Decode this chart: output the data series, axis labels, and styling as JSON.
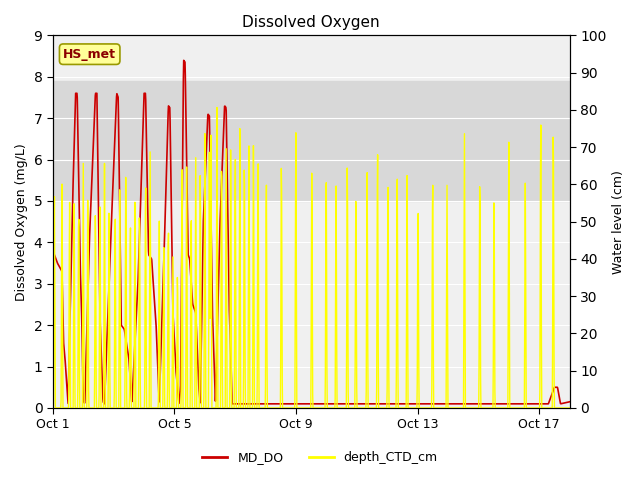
{
  "title": "Dissolved Oxygen",
  "ylabel_left": "Dissolved Oxygen (mg/L)",
  "ylabel_right": "Water level (cm)",
  "ylim_left": [
    0.0,
    9.0
  ],
  "ylim_right": [
    0,
    100
  ],
  "yticks_left": [
    0.0,
    1.0,
    2.0,
    3.0,
    4.0,
    5.0,
    6.0,
    7.0,
    8.0,
    9.0
  ],
  "yticks_right": [
    0,
    10,
    20,
    30,
    40,
    50,
    60,
    70,
    80,
    90,
    100
  ],
  "xtick_labels": [
    "Oct 1",
    "Oct 5",
    "Oct 9",
    "Oct 13",
    "Oct 17"
  ],
  "xtick_positions": [
    0,
    4,
    8,
    12,
    16
  ],
  "color_DO": "#cc0000",
  "color_depth": "#ffff00",
  "legend_label_DO": "MD_DO",
  "legend_label_depth": "depth_CTD_cm",
  "annotation_text": "HS_met",
  "shaded_region": [
    5.0,
    7.9
  ],
  "background_color": "#ffffff",
  "axes_bg_color": "#f0f0f0",
  "grid_color": "#ffffff",
  "annotation_box_color": "#ffff99",
  "annotation_box_edge": "#999900",
  "xlim": [
    0,
    17
  ]
}
